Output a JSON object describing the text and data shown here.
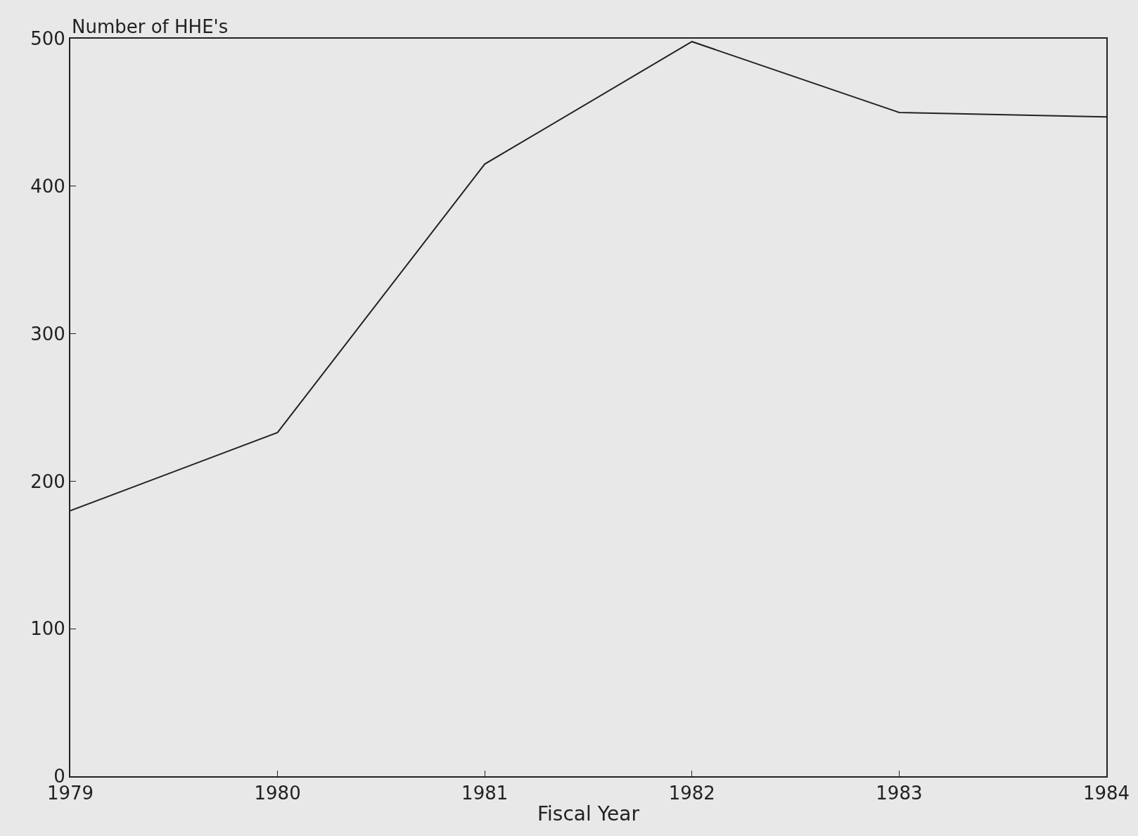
{
  "chart_data": {
    "type": "line",
    "xlabel": "Fiscal Year",
    "ylabel": "Number of HHE's",
    "x": [
      1979,
      1980,
      1981,
      1982,
      1983,
      1984
    ],
    "series": [
      {
        "color": "#222222",
        "values": [
          180,
          233,
          415,
          498,
          450,
          447
        ]
      }
    ],
    "xlim": [
      1979,
      1984
    ],
    "xticks": [
      1979,
      1980,
      1981,
      1982,
      1983,
      1984
    ],
    "ylim": [
      0,
      500
    ],
    "yticks": [
      0,
      100,
      200,
      300,
      400,
      500
    ],
    "grid": false,
    "legend": false,
    "marker": "none",
    "line_style": "solid"
  }
}
